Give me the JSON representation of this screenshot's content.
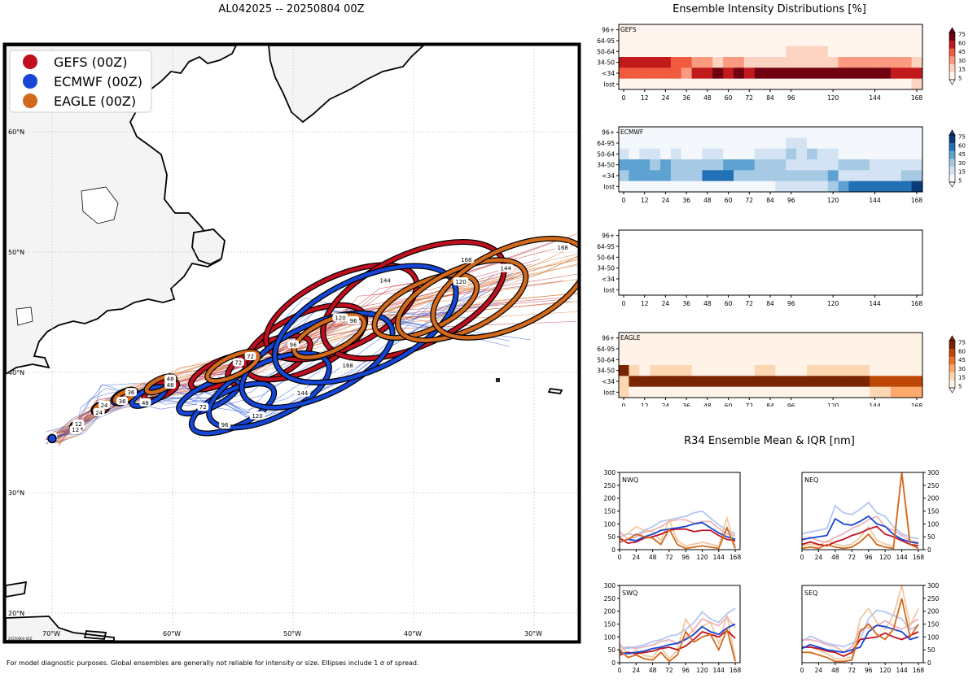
{
  "map": {
    "title": "AL042025 -- 20250804 00Z",
    "legend": [
      {
        "label": "GEFS (00Z)",
        "color": "#c0101f"
      },
      {
        "label": "ECMWF (00Z)",
        "color": "#1546d6"
      },
      {
        "label": "EAGLE (00Z)",
        "color": "#d2691c"
      }
    ],
    "lat_labels": [
      "60°N",
      "50°N",
      "40°N",
      "30°N",
      "20°N"
    ],
    "lon_labels": [
      "70°W",
      "60°W",
      "50°W",
      "40°W",
      "30°W"
    ],
    "stamp": "20250804 00Z"
  },
  "footnote": "For model diagnostic purposes. Global ensembles are generally not reliable for intensity or size. Ellipses include 1 σ of spread.",
  "intensity": {
    "title": "Ensemble Intensity Distributions [%]",
    "rows": [
      "96+",
      "64-95",
      "50-64",
      "34-50",
      "<34",
      "lost"
    ],
    "xticks": [
      "0",
      "12",
      "24",
      "36",
      "48",
      "60",
      "72",
      "84",
      "96",
      "120",
      "144",
      "168"
    ],
    "panels": [
      {
        "name": "GEFS",
        "colorbar": [
          "75",
          "60",
          "45",
          "30",
          "15",
          "5"
        ]
      },
      {
        "name": "ECMWF",
        "colorbar": [
          "75",
          "60",
          "45",
          "30",
          "15",
          "5"
        ]
      },
      {
        "name": "",
        "colorbar": []
      },
      {
        "name": "EAGLE",
        "colorbar": [
          "75",
          "60",
          "45",
          "30",
          "15",
          "5"
        ]
      }
    ]
  },
  "r34": {
    "title": "R34 Ensemble Mean & IQR [nm]",
    "xticks": [
      "0",
      "24",
      "48",
      "72",
      "96",
      "120",
      "144",
      "168"
    ],
    "yticks": [
      "0",
      "50",
      "100",
      "150",
      "200",
      "250",
      "300"
    ],
    "panels": [
      {
        "name": "NWQ"
      },
      {
        "name": "NEQ"
      },
      {
        "name": "SWQ"
      },
      {
        "name": "SEQ"
      }
    ]
  },
  "chart_data": [
    {
      "type": "map-tracks",
      "title": "AL042025 -- 20250804 00Z",
      "models": [
        "GEFS (00Z)",
        "ECMWF (00Z)",
        "EAGLE (00Z)"
      ],
      "ellipse_hours": [
        "0",
        "12",
        "24",
        "36",
        "48",
        "72",
        "96",
        "120",
        "144",
        "168"
      ],
      "gefs_center": [
        [
          -70,
          34.5
        ],
        [
          -68,
          35.5
        ],
        [
          -66,
          37
        ],
        [
          -64,
          38
        ],
        [
          -61,
          38.5
        ],
        [
          -56,
          40
        ],
        [
          -52,
          41
        ],
        [
          -49,
          42.5
        ],
        [
          -46,
          45
        ],
        [
          -40,
          46
        ]
      ],
      "ecmwf_center": [
        [
          -70,
          34.5
        ],
        [
          -68,
          35.5
        ],
        [
          -66,
          37
        ],
        [
          -64,
          38
        ],
        [
          -62,
          38
        ],
        [
          -57,
          38
        ],
        [
          -55,
          37
        ],
        [
          -52,
          38.5
        ],
        [
          -48,
          41
        ],
        [
          -44,
          44
        ]
      ],
      "eagle_center": [
        [
          -70,
          34.5
        ],
        [
          -68,
          35.5
        ],
        [
          -66,
          37
        ],
        [
          -64,
          38
        ],
        [
          -61,
          39
        ],
        [
          -55,
          40.5
        ],
        [
          -47,
          43
        ],
        [
          -39,
          45.5
        ],
        [
          -36,
          46
        ],
        [
          -32,
          47
        ]
      ]
    },
    {
      "type": "heatmap",
      "title": "GEFS",
      "rows": [
        "96+",
        "64-95",
        "50-64",
        "34-50",
        "<34",
        "lost"
      ],
      "x": [
        0,
        6,
        12,
        18,
        24,
        30,
        36,
        42,
        48,
        54,
        60,
        66,
        72,
        78,
        84,
        90,
        96,
        102,
        108,
        114,
        120,
        126,
        132,
        138,
        144,
        150,
        156,
        162,
        168
      ],
      "values": [
        [
          5,
          5,
          5,
          5,
          5,
          5,
          5,
          5,
          5,
          5,
          5,
          5,
          5,
          5,
          5,
          5,
          5,
          5,
          5,
          5,
          5,
          5,
          5,
          5,
          5,
          5,
          5,
          5,
          5
        ],
        [
          5,
          5,
          5,
          5,
          5,
          5,
          5,
          5,
          5,
          5,
          5,
          5,
          5,
          5,
          5,
          5,
          5,
          5,
          5,
          5,
          5,
          5,
          5,
          5,
          5,
          5,
          5,
          5,
          5
        ],
        [
          5,
          5,
          5,
          5,
          5,
          5,
          5,
          5,
          5,
          5,
          5,
          5,
          5,
          5,
          5,
          5,
          15,
          15,
          15,
          15,
          5,
          5,
          5,
          5,
          5,
          5,
          5,
          5,
          5
        ],
        [
          60,
          60,
          60,
          60,
          60,
          50,
          50,
          30,
          30,
          20,
          30,
          30,
          20,
          20,
          15,
          20,
          20,
          20,
          20,
          20,
          15,
          30,
          30,
          30,
          30,
          30,
          30,
          30,
          15
        ],
        [
          40,
          40,
          40,
          40,
          40,
          50,
          30,
          60,
          60,
          80,
          60,
          80,
          60,
          80,
          80,
          80,
          80,
          80,
          70,
          70,
          70,
          70,
          70,
          70,
          70,
          70,
          60,
          60,
          60
        ],
        [
          5,
          5,
          5,
          5,
          5,
          5,
          5,
          5,
          5,
          5,
          5,
          5,
          5,
          5,
          5,
          5,
          5,
          5,
          5,
          5,
          5,
          5,
          5,
          5,
          5,
          5,
          5,
          5,
          15
        ]
      ]
    },
    {
      "type": "heatmap",
      "title": "ECMWF",
      "rows": [
        "96+",
        "64-95",
        "50-64",
        "34-50",
        "<34",
        "lost"
      ],
      "x": [
        0,
        6,
        12,
        18,
        24,
        30,
        36,
        42,
        48,
        54,
        60,
        66,
        72,
        78,
        84,
        90,
        96,
        102,
        108,
        114,
        120,
        126,
        132,
        138,
        144,
        150,
        156,
        162,
        168
      ],
      "values": [
        [
          5,
          5,
          5,
          5,
          5,
          5,
          5,
          5,
          5,
          5,
          5,
          5,
          5,
          5,
          5,
          5,
          5,
          5,
          5,
          5,
          5,
          5,
          5,
          5,
          5,
          5,
          5,
          5,
          5
        ],
        [
          5,
          5,
          5,
          5,
          5,
          5,
          5,
          5,
          5,
          5,
          5,
          5,
          5,
          5,
          5,
          5,
          15,
          15,
          5,
          5,
          5,
          5,
          5,
          5,
          5,
          5,
          5,
          5,
          5
        ],
        [
          15,
          5,
          15,
          15,
          5,
          15,
          5,
          5,
          15,
          15,
          5,
          5,
          5,
          15,
          15,
          15,
          30,
          15,
          30,
          15,
          15,
          5,
          5,
          5,
          5,
          5,
          5,
          5,
          5
        ],
        [
          45,
          45,
          45,
          30,
          45,
          30,
          30,
          30,
          30,
          30,
          45,
          45,
          45,
          30,
          30,
          30,
          15,
          15,
          15,
          15,
          15,
          30,
          30,
          30,
          15,
          15,
          15,
          15,
          15
        ],
        [
          30,
          45,
          45,
          45,
          45,
          30,
          30,
          30,
          60,
          60,
          60,
          30,
          30,
          30,
          30,
          30,
          30,
          30,
          30,
          30,
          45,
          15,
          15,
          15,
          15,
          15,
          15,
          30,
          30
        ],
        [
          5,
          5,
          5,
          5,
          5,
          5,
          5,
          5,
          5,
          5,
          5,
          5,
          5,
          5,
          5,
          15,
          15,
          15,
          15,
          15,
          30,
          45,
          60,
          60,
          60,
          60,
          60,
          60,
          75
        ]
      ]
    },
    {
      "type": "heatmap",
      "title": "",
      "rows": [
        "96+",
        "64-95",
        "50-64",
        "34-50",
        "<34",
        "lost"
      ],
      "x": [],
      "values": []
    },
    {
      "type": "heatmap",
      "title": "EAGLE",
      "rows": [
        "96+",
        "64-95",
        "50-64",
        "34-50",
        "<34",
        "lost"
      ],
      "x": [
        0,
        6,
        12,
        18,
        24,
        30,
        36,
        42,
        48,
        54,
        60,
        66,
        72,
        78,
        84,
        90,
        96,
        102,
        108,
        114,
        120,
        126,
        132,
        138,
        144,
        150,
        156,
        162,
        168
      ],
      "values": [
        [
          5,
          5,
          5,
          5,
          5,
          5,
          5,
          5,
          5,
          5,
          5,
          5,
          5,
          5,
          5,
          5,
          5,
          5,
          5,
          5,
          5,
          5,
          5,
          5,
          5,
          5,
          5,
          5,
          5
        ],
        [
          5,
          5,
          5,
          5,
          5,
          5,
          5,
          5,
          5,
          5,
          5,
          5,
          5,
          5,
          5,
          5,
          5,
          5,
          5,
          5,
          5,
          5,
          5,
          5,
          5,
          5,
          5,
          5,
          5
        ],
        [
          5,
          5,
          5,
          5,
          5,
          5,
          5,
          5,
          5,
          5,
          5,
          5,
          5,
          5,
          5,
          5,
          5,
          5,
          5,
          5,
          5,
          5,
          5,
          5,
          5,
          5,
          5,
          5,
          5
        ],
        [
          75,
          15,
          5,
          15,
          15,
          15,
          15,
          5,
          5,
          5,
          5,
          5,
          5,
          15,
          15,
          5,
          5,
          5,
          15,
          15,
          15,
          15,
          15,
          15,
          5,
          5,
          5,
          5,
          5
        ],
        [
          15,
          75,
          75,
          75,
          75,
          75,
          75,
          75,
          75,
          75,
          75,
          75,
          75,
          75,
          75,
          75,
          75,
          75,
          75,
          75,
          75,
          75,
          75,
          75,
          60,
          60,
          60,
          60,
          60
        ],
        [
          15,
          5,
          5,
          5,
          5,
          5,
          5,
          5,
          5,
          5,
          5,
          5,
          5,
          5,
          5,
          5,
          5,
          5,
          5,
          5,
          5,
          5,
          5,
          5,
          15,
          15,
          30,
          30,
          30
        ]
      ]
    },
    {
      "type": "line",
      "title": "NWQ",
      "xlabel": "",
      "ylabel": "",
      "ylim": [
        0,
        300
      ],
      "x": [
        0,
        12,
        24,
        36,
        48,
        60,
        72,
        84,
        96,
        108,
        120,
        132,
        144,
        156,
        168
      ],
      "series": [
        {
          "name": "GEFS",
          "values": [
            45,
            25,
            30,
            45,
            50,
            60,
            75,
            80,
            80,
            70,
            75,
            75,
            55,
            40,
            35
          ]
        },
        {
          "name": "ECMWF",
          "values": [
            30,
            40,
            35,
            50,
            60,
            75,
            80,
            85,
            90,
            100,
            105,
            85,
            65,
            50,
            40
          ]
        },
        {
          "name": "EAGLE",
          "values": [
            30,
            40,
            60,
            50,
            45,
            20,
            80,
            20,
            5,
            10,
            15,
            10,
            5,
            85,
            5
          ]
        }
      ]
    },
    {
      "type": "line",
      "title": "NEQ",
      "xlabel": "",
      "ylabel": "",
      "ylim": [
        0,
        300
      ],
      "x": [
        0,
        12,
        24,
        36,
        48,
        60,
        72,
        84,
        96,
        108,
        120,
        132,
        144,
        156,
        168
      ],
      "series": [
        {
          "name": "GEFS",
          "values": [
            20,
            30,
            20,
            15,
            30,
            40,
            55,
            65,
            80,
            90,
            60,
            50,
            35,
            20,
            15
          ]
        },
        {
          "name": "ECMWF",
          "values": [
            40,
            45,
            50,
            55,
            120,
            100,
            95,
            110,
            130,
            100,
            90,
            60,
            40,
            30,
            25
          ]
        },
        {
          "name": "EAGLE",
          "values": [
            5,
            10,
            5,
            20,
            10,
            5,
            10,
            30,
            60,
            20,
            10,
            5,
            300,
            20,
            5
          ]
        }
      ]
    },
    {
      "type": "line",
      "title": "SWQ",
      "xlabel": "",
      "ylabel": "",
      "ylim": [
        0,
        300
      ],
      "x": [
        0,
        12,
        24,
        36,
        48,
        60,
        72,
        84,
        96,
        108,
        120,
        132,
        144,
        156,
        168
      ],
      "series": [
        {
          "name": "GEFS",
          "values": [
            30,
            40,
            35,
            40,
            45,
            55,
            60,
            50,
            65,
            90,
            120,
            110,
            100,
            125,
            95
          ]
        },
        {
          "name": "ECMWF",
          "values": [
            40,
            35,
            40,
            45,
            55,
            60,
            70,
            75,
            90,
            110,
            140,
            120,
            110,
            135,
            150
          ]
        },
        {
          "name": "EAGLE",
          "values": [
            50,
            20,
            30,
            15,
            10,
            40,
            5,
            30,
            120,
            80,
            100,
            110,
            50,
            130,
            5
          ]
        }
      ]
    },
    {
      "type": "line",
      "title": "SEQ",
      "xlabel": "",
      "ylabel": "",
      "ylim": [
        0,
        300
      ],
      "x": [
        0,
        12,
        24,
        36,
        48,
        60,
        72,
        84,
        96,
        108,
        120,
        132,
        144,
        156,
        168
      ],
      "series": [
        {
          "name": "GEFS",
          "values": [
            60,
            60,
            55,
            45,
            40,
            25,
            40,
            90,
            95,
            100,
            115,
            100,
            90,
            105,
            120
          ]
        },
        {
          "name": "ECMWF",
          "values": [
            55,
            70,
            60,
            50,
            45,
            40,
            50,
            60,
            120,
            145,
            140,
            130,
            120,
            90,
            100
          ]
        },
        {
          "name": "EAGLE",
          "values": [
            40,
            40,
            30,
            20,
            5,
            5,
            10,
            120,
            150,
            110,
            90,
            130,
            250,
            100,
            150
          ]
        }
      ]
    }
  ]
}
